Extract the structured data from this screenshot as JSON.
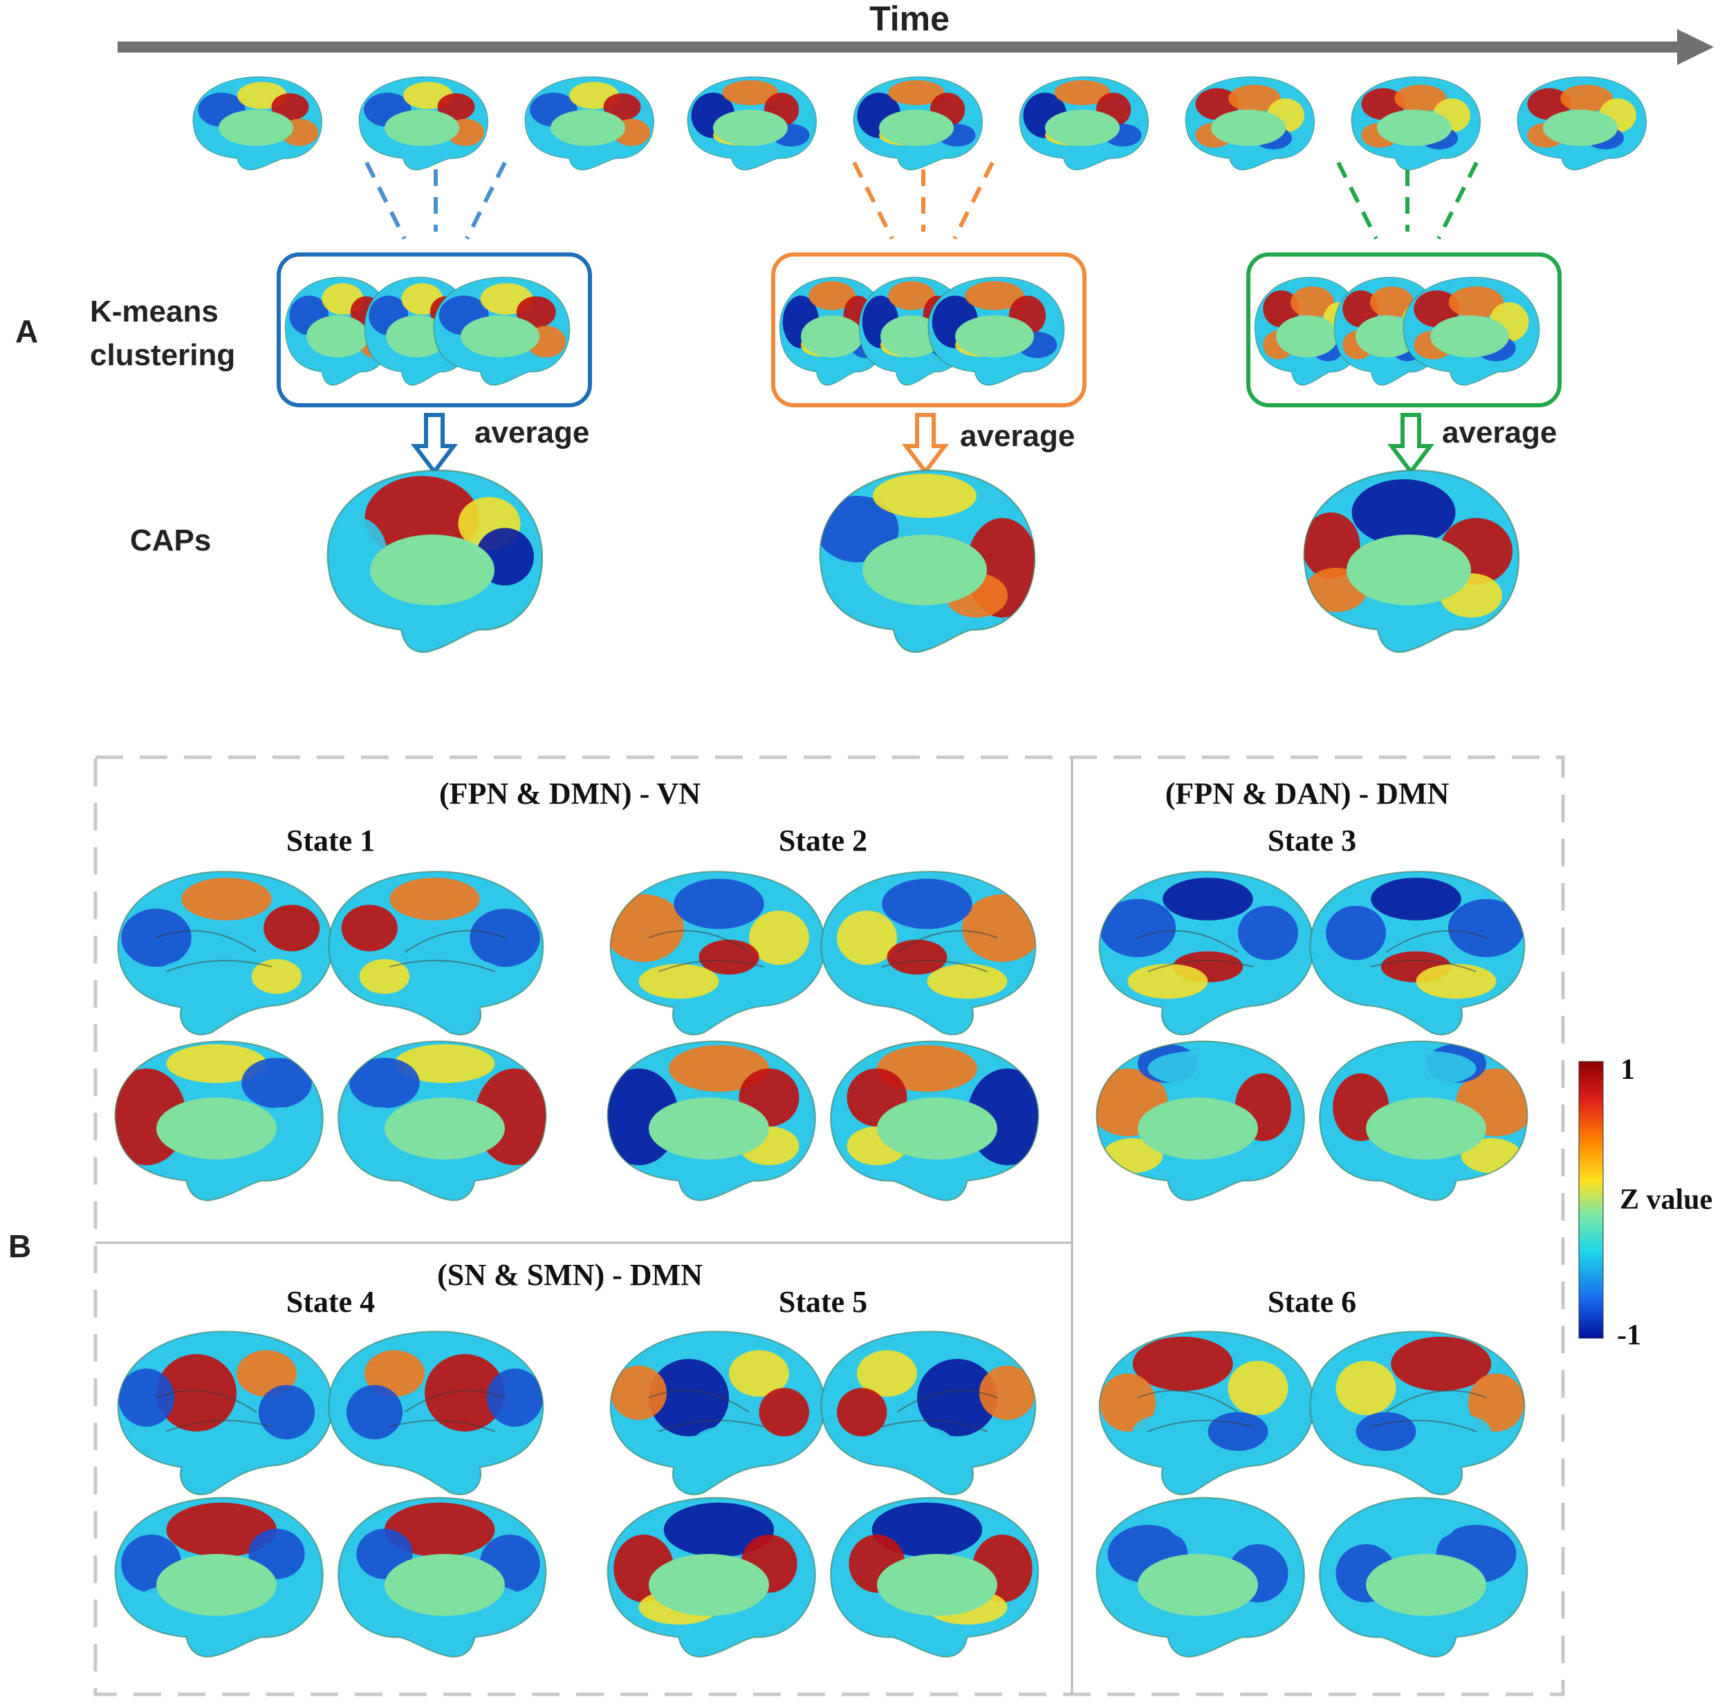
{
  "panel_a": {
    "label": "A",
    "time_label": "Time",
    "kmeans_label_line1": "K-means",
    "kmeans_label_line2": "clustering",
    "caps_label": "CAPs",
    "average_label": "average",
    "clusters": [
      {
        "name": "blue",
        "color": "#1f6fb8",
        "dash_color": "#4a90cc"
      },
      {
        "name": "orange",
        "color": "#f08a3c",
        "dash_color": "#f08a3c"
      },
      {
        "name": "green",
        "color": "#22a84a",
        "dash_color": "#22a84a"
      }
    ]
  },
  "panel_b": {
    "label": "B",
    "group1_title": "(FPN & DMN) - VN",
    "group2_title": "(FPN & DAN) - DMN",
    "group3_title": "(SN & SMN) - DMN",
    "states": [
      {
        "label": "State 1"
      },
      {
        "label": "State 2"
      },
      {
        "label": "State 3"
      },
      {
        "label": "State 4"
      },
      {
        "label": "State 5"
      },
      {
        "label": "State 6"
      }
    ],
    "colorbar": {
      "max_label": "1",
      "min_label": "-1",
      "title": "Z value",
      "colors": [
        "#8b0000",
        "#e0201a",
        "#ff8c00",
        "#ffe020",
        "#7fe8a0",
        "#20d8e8",
        "#1a70f0",
        "#0010a0"
      ]
    }
  },
  "brain_colors": {
    "surface": "#7fe0a0",
    "red": "#c01010",
    "orange": "#f07820",
    "yellow": "#f0e030",
    "cyan": "#30c8e8",
    "blue": "#1a50d0",
    "navy": "#0a1aa0",
    "dark_green": "#3c9c6c"
  }
}
